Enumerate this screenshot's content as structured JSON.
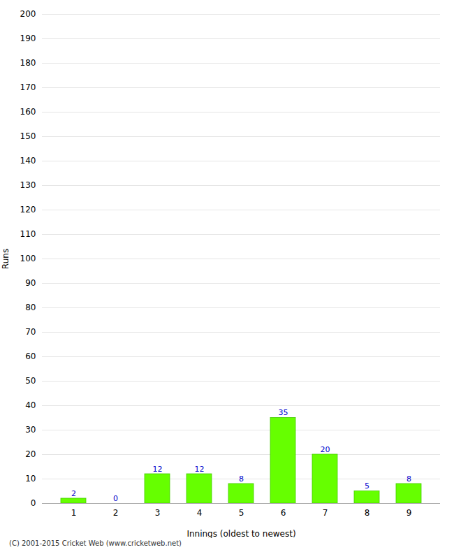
{
  "chart_data": {
    "type": "bar",
    "xlabel": "Innings (oldest to newest)",
    "ylabel": "Runs",
    "categories": [
      "1",
      "2",
      "3",
      "4",
      "5",
      "6",
      "7",
      "8",
      "9"
    ],
    "values": [
      2,
      0,
      12,
      12,
      8,
      35,
      20,
      5,
      8
    ],
    "color": "#66ff00",
    "ylim": [
      0,
      200
    ],
    "yticks": [
      0,
      10,
      20,
      30,
      40,
      50,
      60,
      70,
      80,
      90,
      100,
      110,
      120,
      130,
      140,
      150,
      160,
      170,
      180,
      190,
      200
    ],
    "grid": true,
    "data_labels": true,
    "annotations": [
      "(C) 2001-2015 Cricket Web (www.cricketweb.net)"
    ]
  }
}
